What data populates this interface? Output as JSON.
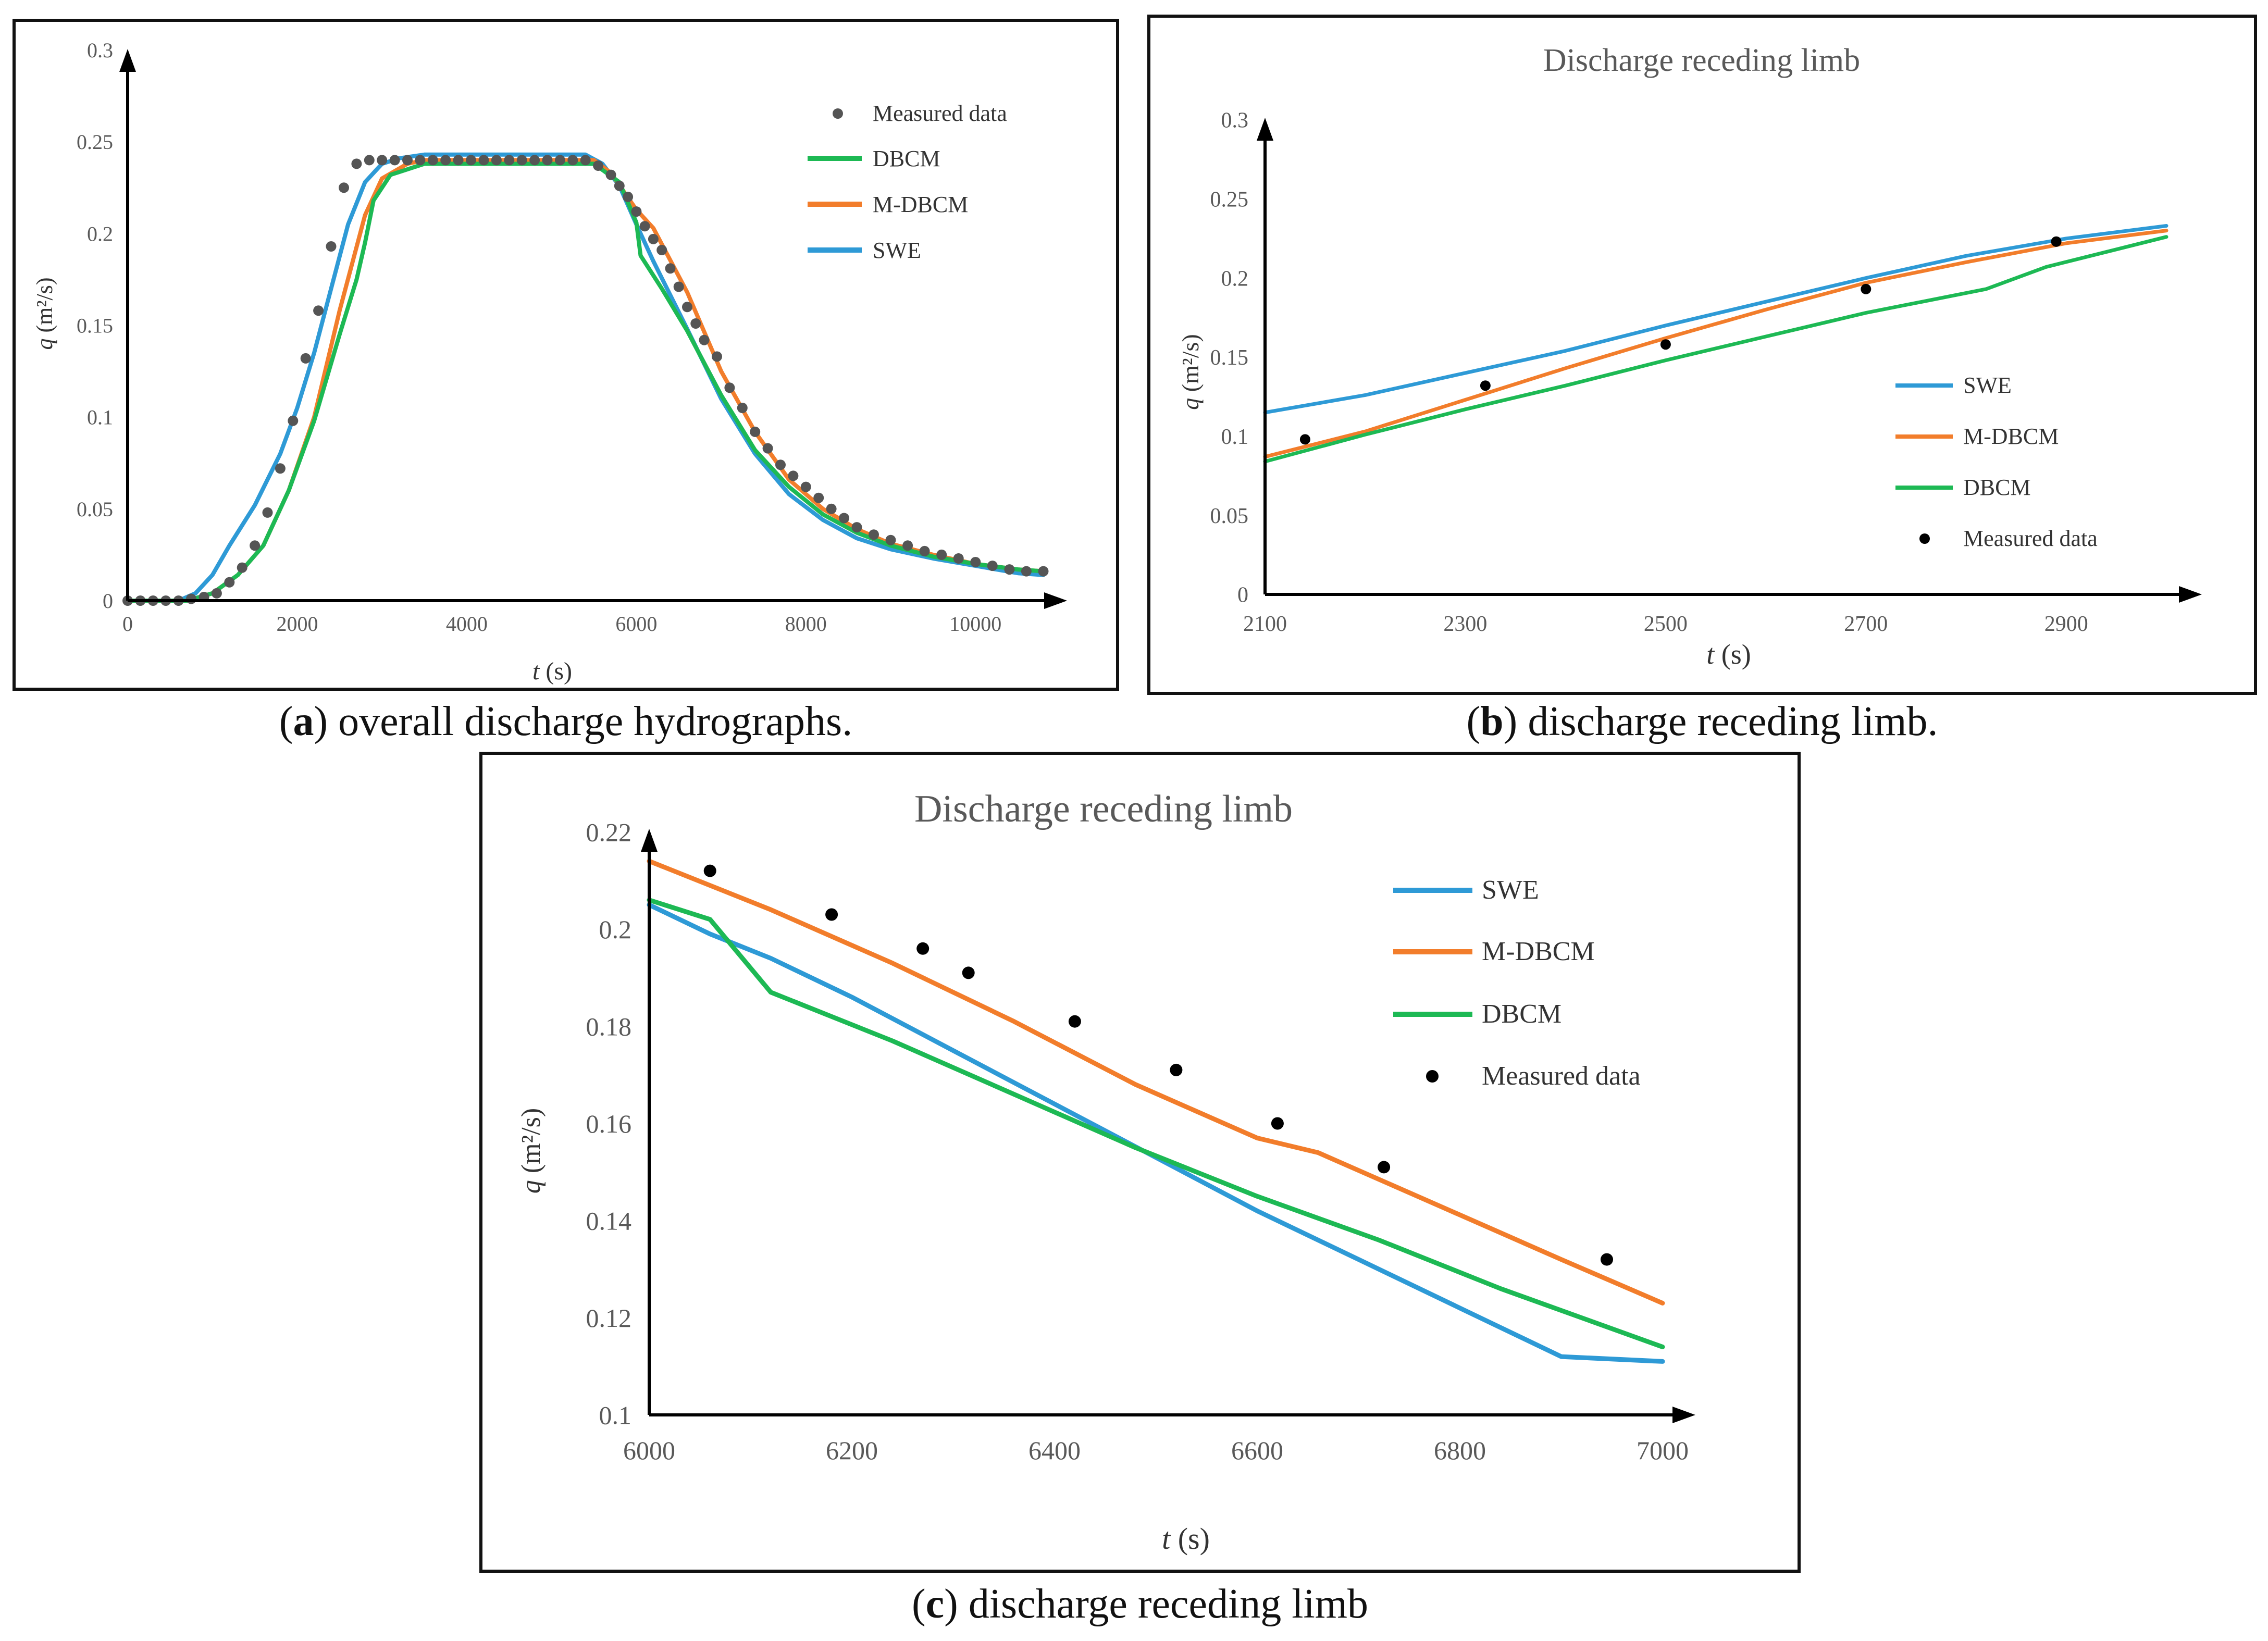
{
  "colors": {
    "swe": "#2E9AD6",
    "mdbcm": "#F27D2B",
    "dbcm": "#1DB954",
    "measured_a": "#555555",
    "measured_bc": "#000000",
    "axis": "#000000",
    "title": "#595959"
  },
  "captions": {
    "a": {
      "letter": "a",
      "text": " overall discharge hydrographs."
    },
    "b": {
      "letter": "b",
      "text": " discharge receding limb."
    },
    "c": {
      "letter": "c",
      "text": " discharge receding limb"
    }
  },
  "chart_data": [
    {
      "id": "a",
      "type": "line",
      "title": "",
      "xlabel": "t",
      "xlabel_unit": "(s)",
      "ylabel": "q",
      "ylabel_unit": "(m²/s)",
      "xlim": [
        0,
        11000
      ],
      "ylim": [
        0,
        0.3
      ],
      "xticks": [
        0,
        2000,
        4000,
        6000,
        8000,
        10000
      ],
      "yticks": [
        0,
        0.05,
        0.1,
        0.15,
        0.2,
        0.25,
        0.3
      ],
      "xtick_labels": [
        "0",
        "2000",
        "4000",
        "6000",
        "8000",
        "10000"
      ],
      "ytick_labels": [
        "0",
        "0.05",
        "0.1",
        "0.15",
        "0.2",
        "0.25",
        "0.3"
      ],
      "legend": [
        "Measured data",
        "DBCM",
        "M-DBCM",
        "SWE"
      ],
      "series": [
        {
          "name": "SWE",
          "kind": "line",
          "color": "#2E9AD6",
          "x": [
            0,
            600,
            800,
            1000,
            1200,
            1500,
            1800,
            2000,
            2200,
            2400,
            2600,
            2800,
            3000,
            3200,
            3500,
            4500,
            5400,
            5600,
            5800,
            6000,
            6200,
            6600,
            7000,
            7400,
            7800,
            8200,
            8600,
            9000,
            9500,
            10000,
            10500,
            10800
          ],
          "y": [
            0,
            0,
            0.004,
            0.014,
            0.03,
            0.052,
            0.08,
            0.105,
            0.135,
            0.17,
            0.205,
            0.228,
            0.238,
            0.241,
            0.243,
            0.243,
            0.243,
            0.238,
            0.226,
            0.205,
            0.185,
            0.148,
            0.11,
            0.08,
            0.058,
            0.044,
            0.034,
            0.028,
            0.023,
            0.019,
            0.015,
            0.014
          ]
        },
        {
          "name": "M-DBCM",
          "kind": "line",
          "color": "#F27D2B",
          "x": [
            0,
            700,
            1000,
            1300,
            1600,
            1900,
            2200,
            2500,
            2800,
            3000,
            3300,
            3500,
            5500,
            5700,
            6000,
            6200,
            6600,
            7000,
            7400,
            7800,
            8200,
            8600,
            9000,
            9500,
            10000,
            10500,
            10800
          ],
          "y": [
            0,
            0,
            0.004,
            0.014,
            0.03,
            0.06,
            0.1,
            0.158,
            0.21,
            0.23,
            0.238,
            0.24,
            0.24,
            0.233,
            0.213,
            0.203,
            0.168,
            0.125,
            0.092,
            0.066,
            0.05,
            0.039,
            0.031,
            0.025,
            0.02,
            0.017,
            0.016
          ]
        },
        {
          "name": "DBCM",
          "kind": "line",
          "color": "#1DB954",
          "x": [
            0,
            700,
            1000,
            1300,
            1600,
            1900,
            2200,
            2500,
            2700,
            2800,
            2900,
            3100,
            3500,
            5500,
            5800,
            6000,
            6050,
            6300,
            6600,
            7000,
            7400,
            7800,
            8200,
            8600,
            9000,
            9500,
            10000,
            10500,
            10800
          ],
          "y": [
            0,
            0,
            0.004,
            0.014,
            0.03,
            0.06,
            0.098,
            0.145,
            0.175,
            0.195,
            0.218,
            0.232,
            0.238,
            0.238,
            0.228,
            0.206,
            0.188,
            0.17,
            0.147,
            0.112,
            0.082,
            0.062,
            0.047,
            0.037,
            0.03,
            0.024,
            0.02,
            0.017,
            0.016
          ]
        },
        {
          "name": "Measured data",
          "kind": "points",
          "color": "#555555",
          "x": [
            0,
            150,
            300,
            450,
            600,
            750,
            900,
            1050,
            1200,
            1350,
            1500,
            1650,
            1800,
            1950,
            2100,
            2250,
            2400,
            2550,
            2700,
            2850,
            3000,
            3150,
            3300,
            3450,
            3600,
            3750,
            3900,
            4050,
            4200,
            4350,
            4500,
            4650,
            4800,
            4950,
            5100,
            5250,
            5400,
            5550,
            5700,
            5800,
            5900,
            6000,
            6100,
            6200,
            6300,
            6400,
            6500,
            6600,
            6700,
            6800,
            6950,
            7100,
            7250,
            7400,
            7550,
            7700,
            7850,
            8000,
            8150,
            8300,
            8450,
            8600,
            8800,
            9000,
            9200,
            9400,
            9600,
            9800,
            10000,
            10200,
            10400,
            10600,
            10800
          ],
          "y": [
            0,
            0,
            0,
            0,
            0,
            0.001,
            0.002,
            0.004,
            0.01,
            0.018,
            0.03,
            0.048,
            0.072,
            0.098,
            0.132,
            0.158,
            0.193,
            0.225,
            0.238,
            0.24,
            0.24,
            0.24,
            0.24,
            0.24,
            0.24,
            0.24,
            0.24,
            0.24,
            0.24,
            0.24,
            0.24,
            0.24,
            0.24,
            0.24,
            0.24,
            0.24,
            0.24,
            0.237,
            0.232,
            0.226,
            0.22,
            0.212,
            0.204,
            0.197,
            0.191,
            0.181,
            0.171,
            0.16,
            0.151,
            0.142,
            0.133,
            0.116,
            0.105,
            0.092,
            0.083,
            0.074,
            0.068,
            0.062,
            0.056,
            0.05,
            0.045,
            0.04,
            0.036,
            0.033,
            0.03,
            0.027,
            0.025,
            0.023,
            0.021,
            0.019,
            0.017,
            0.016,
            0.016
          ]
        }
      ]
    },
    {
      "id": "b",
      "type": "line",
      "title": "Discharge receding limb",
      "xlabel": "t",
      "xlabel_unit": "(s)",
      "ylabel": "q",
      "ylabel_unit": "(m²/s)",
      "xlim": [
        2100,
        3000
      ],
      "ylim": [
        0,
        0.3
      ],
      "xticks": [
        2100,
        2300,
        2500,
        2700,
        2900
      ],
      "yticks": [
        0,
        0.05,
        0.1,
        0.15,
        0.2,
        0.25,
        0.3
      ],
      "xtick_labels": [
        "2100",
        "2300",
        "2500",
        "2700",
        "2900"
      ],
      "ytick_labels": [
        "0",
        "0.05",
        "0.1",
        "0.15",
        "0.2",
        "0.25",
        "0.3"
      ],
      "legend": [
        "SWE",
        "M-DBCM",
        "DBCM",
        "Measured data"
      ],
      "series": [
        {
          "name": "SWE",
          "kind": "line",
          "color": "#2E9AD6",
          "x": [
            2100,
            2200,
            2300,
            2400,
            2500,
            2600,
            2700,
            2800,
            2900,
            3000
          ],
          "y": [
            0.115,
            0.126,
            0.14,
            0.154,
            0.17,
            0.185,
            0.2,
            0.214,
            0.225,
            0.233
          ]
        },
        {
          "name": "M-DBCM",
          "kind": "line",
          "color": "#F27D2B",
          "x": [
            2100,
            2200,
            2300,
            2400,
            2500,
            2600,
            2700,
            2800,
            2900,
            3000
          ],
          "y": [
            0.087,
            0.103,
            0.123,
            0.143,
            0.162,
            0.18,
            0.197,
            0.21,
            0.222,
            0.23
          ]
        },
        {
          "name": "DBCM",
          "kind": "line",
          "color": "#1DB954",
          "x": [
            2100,
            2200,
            2300,
            2400,
            2500,
            2600,
            2700,
            2820,
            2880,
            3000
          ],
          "y": [
            0.084,
            0.101,
            0.117,
            0.132,
            0.148,
            0.163,
            0.178,
            0.193,
            0.207,
            0.226
          ]
        },
        {
          "name": "Measured data",
          "kind": "points",
          "color": "#000000",
          "x": [
            2140,
            2320,
            2500,
            2700,
            2890
          ],
          "y": [
            0.098,
            0.132,
            0.158,
            0.193,
            0.223
          ]
        }
      ]
    },
    {
      "id": "c",
      "type": "line",
      "title": "Discharge receding limb",
      "xlabel": "t",
      "xlabel_unit": "(s)",
      "ylabel": "q",
      "ylabel_unit": "(m²/s)",
      "xlim": [
        6000,
        7000
      ],
      "ylim": [
        0.1,
        0.22
      ],
      "xticks": [
        6000,
        6200,
        6400,
        6600,
        6800,
        7000
      ],
      "yticks": [
        0.1,
        0.12,
        0.14,
        0.16,
        0.18,
        0.2,
        0.22
      ],
      "xtick_labels": [
        "6000",
        "6200",
        "6400",
        "6600",
        "6800",
        "7000"
      ],
      "ytick_labels": [
        "0.1",
        "0.12",
        "0.14",
        "0.16",
        "0.18",
        "0.2",
        "0.22"
      ],
      "legend": [
        "SWE",
        "M-DBCM",
        "DBCM",
        "Measured data"
      ],
      "series": [
        {
          "name": "SWE",
          "kind": "line",
          "color": "#2E9AD6",
          "x": [
            6000,
            6060,
            6120,
            6200,
            6300,
            6400,
            6500,
            6600,
            6700,
            6800,
            6900,
            7000
          ],
          "y": [
            0.205,
            0.199,
            0.194,
            0.186,
            0.175,
            0.164,
            0.153,
            0.142,
            0.132,
            0.122,
            0.112,
            0.111
          ]
        },
        {
          "name": "M-DBCM",
          "kind": "line",
          "color": "#F27D2B",
          "x": [
            6000,
            6120,
            6240,
            6360,
            6480,
            6600,
            6660,
            6780,
            6900,
            7000
          ],
          "y": [
            0.214,
            0.204,
            0.193,
            0.181,
            0.168,
            0.157,
            0.154,
            0.143,
            0.132,
            0.123
          ]
        },
        {
          "name": "DBCM",
          "kind": "line",
          "color": "#1DB954",
          "x": [
            6000,
            6060,
            6120,
            6240,
            6360,
            6480,
            6600,
            6720,
            6840,
            7000
          ],
          "y": [
            0.206,
            0.202,
            0.187,
            0.177,
            0.166,
            0.155,
            0.145,
            0.136,
            0.126,
            0.114
          ]
        },
        {
          "name": "Measured data",
          "kind": "points",
          "color": "#000000",
          "x": [
            6060,
            6180,
            6270,
            6315,
            6420,
            6520,
            6620,
            6725,
            6945
          ],
          "y": [
            0.212,
            0.203,
            0.196,
            0.191,
            0.181,
            0.171,
            0.16,
            0.151,
            0.132
          ]
        }
      ]
    }
  ]
}
